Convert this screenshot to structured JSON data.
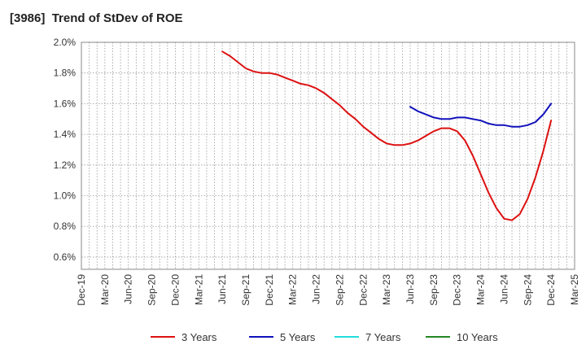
{
  "chart_data": {
    "type": "line",
    "title": "[3986]  Trend of StDev of ROE",
    "xlabel": "",
    "ylabel": "",
    "x_ticks": [
      "Dec-19",
      "Mar-20",
      "Jun-20",
      "Sep-20",
      "Dec-20",
      "Mar-21",
      "Jun-21",
      "Sep-21",
      "Dec-21",
      "Mar-22",
      "Jun-22",
      "Sep-22",
      "Dec-22",
      "Mar-23",
      "Jun-23",
      "Sep-23",
      "Dec-23",
      "Mar-24",
      "Jun-24",
      "Sep-24",
      "Dec-24",
      "Mar-25"
    ],
    "y_ticks": [
      "0.6%",
      "0.8%",
      "1.0%",
      "1.2%",
      "1.4%",
      "1.6%",
      "1.8%",
      "2.0%"
    ],
    "y_tick_values": [
      0.6,
      0.8,
      1.0,
      1.2,
      1.4,
      1.6,
      1.8,
      2.0
    ],
    "ylim": [
      0.52,
      2.0
    ],
    "grid": true,
    "legend_position": "bottom",
    "series": [
      {
        "name": "3 Years",
        "color": "#dd1111",
        "points": [
          [
            "Jun-21",
            1.94
          ],
          [
            "Jul-21",
            1.91
          ],
          [
            "Aug-21",
            1.87
          ],
          [
            "Sep-21",
            1.83
          ],
          [
            "Oct-21",
            1.81
          ],
          [
            "Nov-21",
            1.8
          ],
          [
            "Dec-21",
            1.8
          ],
          [
            "Jan-22",
            1.79
          ],
          [
            "Feb-22",
            1.77
          ],
          [
            "Mar-22",
            1.75
          ],
          [
            "Apr-22",
            1.73
          ],
          [
            "May-22",
            1.72
          ],
          [
            "Jun-22",
            1.7
          ],
          [
            "Jul-22",
            1.67
          ],
          [
            "Aug-22",
            1.63
          ],
          [
            "Sep-22",
            1.59
          ],
          [
            "Oct-22",
            1.54
          ],
          [
            "Nov-22",
            1.5
          ],
          [
            "Dec-22",
            1.45
          ],
          [
            "Jan-23",
            1.41
          ],
          [
            "Feb-23",
            1.37
          ],
          [
            "Mar-23",
            1.34
          ],
          [
            "Apr-23",
            1.33
          ],
          [
            "May-23",
            1.33
          ],
          [
            "Jun-23",
            1.34
          ],
          [
            "Jul-23",
            1.36
          ],
          [
            "Aug-23",
            1.39
          ],
          [
            "Sep-23",
            1.42
          ],
          [
            "Oct-23",
            1.44
          ],
          [
            "Nov-23",
            1.44
          ],
          [
            "Dec-23",
            1.42
          ],
          [
            "Jan-24",
            1.36
          ],
          [
            "Feb-24",
            1.26
          ],
          [
            "Mar-24",
            1.14
          ],
          [
            "Apr-24",
            1.02
          ],
          [
            "May-24",
            0.92
          ],
          [
            "Jun-24",
            0.85
          ],
          [
            "Jul-24",
            0.84
          ],
          [
            "Aug-24",
            0.88
          ],
          [
            "Sep-24",
            0.98
          ],
          [
            "Oct-24",
            1.12
          ],
          [
            "Nov-24",
            1.29
          ],
          [
            "Dec-24",
            1.49
          ]
        ]
      },
      {
        "name": "5 Years",
        "color": "#1111bb",
        "points": [
          [
            "Jun-23",
            1.58
          ],
          [
            "Jul-23",
            1.55
          ],
          [
            "Aug-23",
            1.53
          ],
          [
            "Sep-23",
            1.51
          ],
          [
            "Oct-23",
            1.5
          ],
          [
            "Nov-23",
            1.5
          ],
          [
            "Dec-23",
            1.51
          ],
          [
            "Jan-24",
            1.51
          ],
          [
            "Feb-24",
            1.5
          ],
          [
            "Mar-24",
            1.49
          ],
          [
            "Apr-24",
            1.47
          ],
          [
            "May-24",
            1.46
          ],
          [
            "Jun-24",
            1.46
          ],
          [
            "Jul-24",
            1.45
          ],
          [
            "Aug-24",
            1.45
          ],
          [
            "Sep-24",
            1.46
          ],
          [
            "Oct-24",
            1.48
          ],
          [
            "Nov-24",
            1.53
          ],
          [
            "Dec-24",
            1.6
          ]
        ]
      },
      {
        "name": "7 Years",
        "color": "#22dddd",
        "points": []
      },
      {
        "name": "10 Years",
        "color": "#228822",
        "points": []
      }
    ]
  }
}
